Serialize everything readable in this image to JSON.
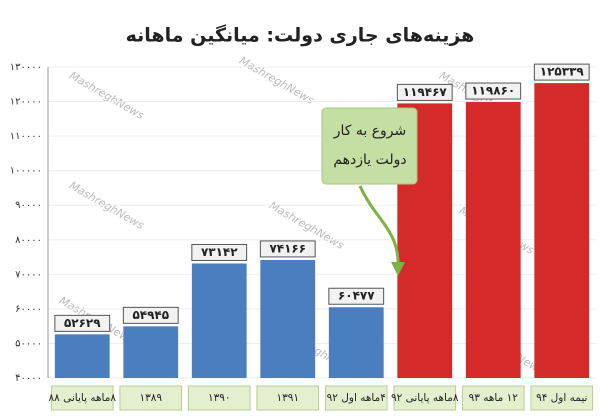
{
  "chart_data": {
    "type": "bar",
    "title": "هزینه‌های جاری دولت: میانگین ماهانه",
    "watermark": "MashreghNews",
    "annotation": [
      "شروع به کار",
      "دولت یازدهم"
    ],
    "categories": [
      "۸ماهه پایانی ۸۸",
      "۱۳۸۹",
      "۱۳۹۰",
      "۱۳۹۱",
      "۴ماهه اول ۹۲",
      "۸ماهه پایانی ۹۲",
      "۱۲ ماهه ۹۳",
      "نیمه اول ۹۴"
    ],
    "values": [
      52629,
      54945,
      73142,
      74166,
      60477,
      119467,
      119860,
      125339
    ],
    "value_labels": [
      "۵۲۶۲۹",
      "۵۴۹۴۵",
      "۷۳۱۴۲",
      "۷۴۱۶۶",
      "۶۰۴۷۷",
      "۱۱۹۴۶۷",
      "۱۱۹۸۶۰",
      "۱۲۵۳۳۹"
    ],
    "colors": [
      "#4a7ebf",
      "#4a7ebf",
      "#4a7ebf",
      "#4a7ebf",
      "#4a7ebf",
      "#d42a2a",
      "#d42a2a",
      "#d42a2a"
    ],
    "ylim": [
      40000,
      130000
    ],
    "yticks": [
      {
        "value": 40000,
        "label": "۴۰۰۰۰"
      },
      {
        "value": 50000,
        "label": "۵۰۰۰۰"
      },
      {
        "value": 60000,
        "label": "۶۰۰۰۰"
      },
      {
        "value": 70000,
        "label": "۷۰۰۰۰"
      },
      {
        "value": 80000,
        "label": "۸۰۰۰۰"
      },
      {
        "value": 90000,
        "label": "۹۰۰۰۰"
      },
      {
        "value": 100000,
        "label": "۱۰۰۰۰۰"
      },
      {
        "value": 110000,
        "label": "۱۱۰۰۰۰"
      },
      {
        "value": 120000,
        "label": "۱۲۰۰۰۰"
      },
      {
        "value": 130000,
        "label": "۱۳۰۰۰۰"
      }
    ],
    "grid": true
  }
}
